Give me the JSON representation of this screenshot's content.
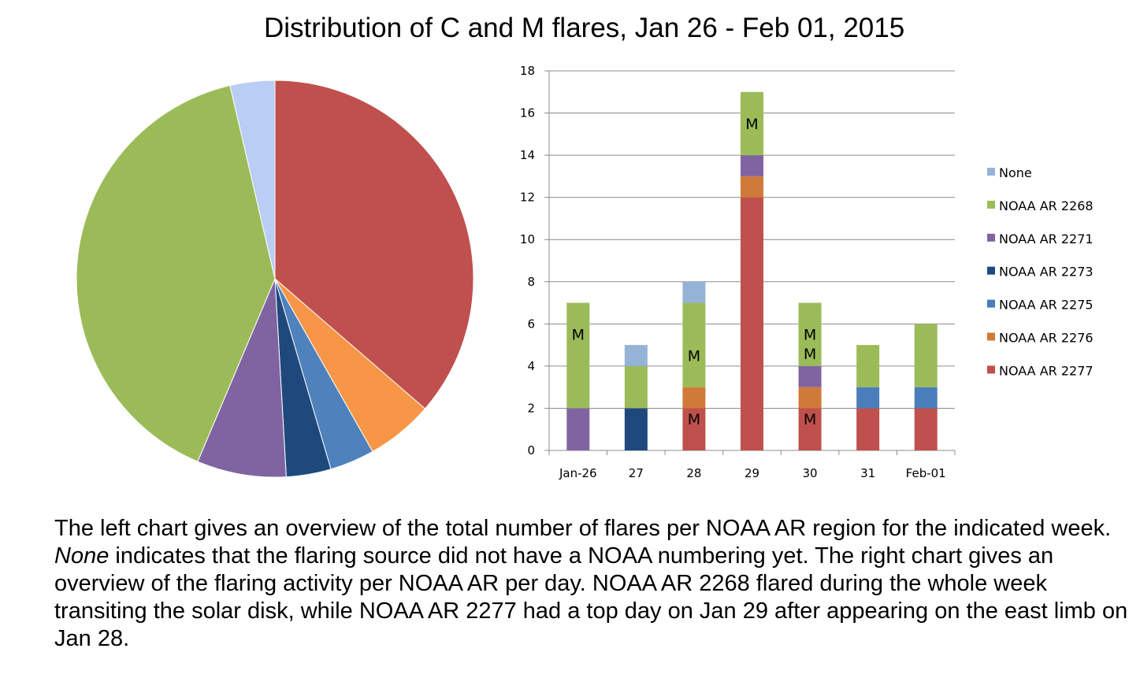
{
  "title": "Distribution of C and M flares, Jan 26 - Feb 01, 2015",
  "caption": {
    "part1": "The left chart gives an overview of the total number of flares per NOAA AR region for the indicated week. ",
    "emphasis": "None",
    "part2": " indicates that the flaring source did not have a NOAA numbering yet. The right chart gives an overview of the flaring activity per NOAA AR per day. NOAA AR 2268 flared during the whole week transiting the solar disk, while NOAA AR 2277 had a top day on Jan 29 after appearing on the east limb on Jan 28."
  },
  "chart_data": [
    {
      "type": "pie",
      "slices": [
        {
          "category": "NOAA AR 2277",
          "value": 20,
          "color": "#c0504d"
        },
        {
          "category": "NOAA AR 2276",
          "value": 3,
          "color": "#f79646"
        },
        {
          "category": "NOAA AR 2275",
          "value": 2,
          "color": "#4f81bd"
        },
        {
          "category": "NOAA AR 2273",
          "value": 2,
          "color": "#1f497d"
        },
        {
          "category": "NOAA AR 2271",
          "value": 4,
          "color": "#8064a2"
        },
        {
          "category": "NOAA AR 2268",
          "value": 22,
          "color": "#9bbb59"
        },
        {
          "category": "None",
          "value": 2,
          "color": "#b9cdf5"
        }
      ],
      "start_angle_deg": 0,
      "direction": "clockwise"
    },
    {
      "type": "bar",
      "stacked": true,
      "categories": [
        "Jan-26",
        "27",
        "28",
        "29",
        "30",
        "31",
        "Feb-01"
      ],
      "ylim": [
        0,
        18
      ],
      "yticks": [
        0,
        2,
        4,
        6,
        8,
        10,
        12,
        14,
        16,
        18
      ],
      "grid": true,
      "legend_position": "right",
      "series": [
        {
          "name": "NOAA AR 2277",
          "color": "#c0504d",
          "values": [
            0,
            0,
            2,
            12,
            2,
            2,
            2
          ]
        },
        {
          "name": "NOAA AR 2276",
          "color": "#d07a3a",
          "values": [
            0,
            0,
            1,
            1,
            1,
            0,
            0
          ]
        },
        {
          "name": "NOAA AR 2275",
          "color": "#4a7ebb",
          "values": [
            0,
            0,
            0,
            0,
            0,
            1,
            1
          ]
        },
        {
          "name": "NOAA AR 2273",
          "color": "#1f497d",
          "values": [
            0,
            2,
            0,
            0,
            0,
            0,
            0
          ]
        },
        {
          "name": "NOAA AR 2271",
          "color": "#8064a2",
          "values": [
            2,
            0,
            0,
            1,
            1,
            0,
            0
          ]
        },
        {
          "name": "NOAA AR 2268",
          "color": "#9bbb59",
          "values": [
            5,
            2,
            4,
            3,
            3,
            2,
            3
          ]
        },
        {
          "name": "None",
          "color": "#95b3d7",
          "values": [
            0,
            1,
            1,
            0,
            0,
            0,
            0
          ]
        }
      ],
      "legend_order": [
        "None",
        "NOAA AR 2268",
        "NOAA AR 2271",
        "NOAA AR 2273",
        "NOAA AR 2275",
        "NOAA AR 2276",
        "NOAA AR 2277"
      ],
      "annotations": [
        {
          "text": "M",
          "category": "Jan-26",
          "series": "NOAA AR 2268",
          "y": 5.5
        },
        {
          "text": "M",
          "category": "28",
          "series": "NOAA AR 2268",
          "y": 4.5
        },
        {
          "text": "M",
          "category": "28",
          "series": "NOAA AR 2277",
          "y": 1.5
        },
        {
          "text": "M",
          "category": "29",
          "series": "NOAA AR 2268",
          "y": 15.5
        },
        {
          "text": "M",
          "category": "30",
          "series": "NOAA AR 2268",
          "y": 5.5
        },
        {
          "text": "M",
          "category": "30",
          "series": "NOAA AR 2268",
          "y": 4.6
        },
        {
          "text": "M",
          "category": "30",
          "series": "NOAA AR 2277",
          "y": 1.5
        }
      ]
    }
  ]
}
